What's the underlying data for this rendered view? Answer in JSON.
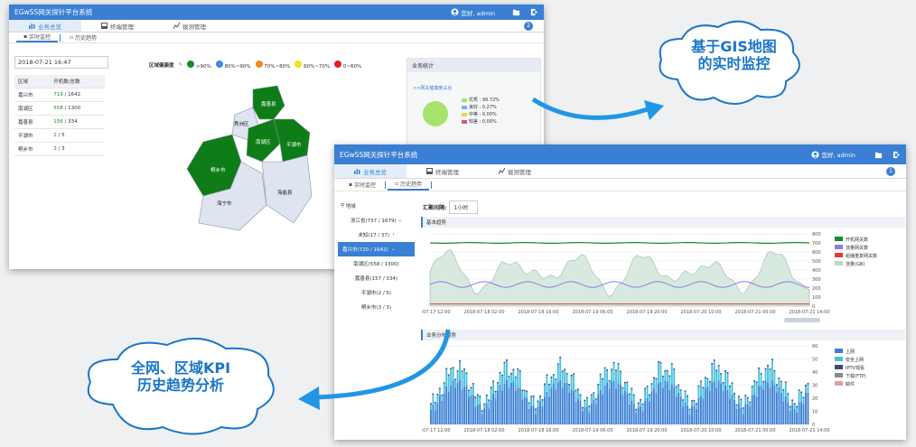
{
  "app_title": "EGwSS网关探针平台系统",
  "user_greeting": "您好, admin",
  "nav_tabs": [
    "业务总览",
    "终端管理",
    "拨测管理"
  ],
  "badge_count": "2",
  "badge_count_b": "1",
  "sub_tabs": [
    "实时监控",
    "历史趋势"
  ],
  "screenA": {
    "datetime": "2018-07-21 16:47",
    "legend_title": "区域健康度",
    "legend": [
      {
        "label": ">90%",
        "color": "#1a8a2a"
      },
      {
        "label": "80%~90%",
        "color": "#3a8ee6"
      },
      {
        "label": "70%~80%",
        "color": "#f08a1c"
      },
      {
        "label": "60%~70%",
        "color": "#f2e21a"
      },
      {
        "label": "0~60%",
        "color": "#e02020"
      }
    ],
    "table_headers": [
      "区域",
      "开机数/总数"
    ],
    "table_rows": [
      {
        "region": "嘉兴市",
        "a": "719",
        "b": "1642"
      },
      {
        "region": "南湖区",
        "a": "558",
        "b": "1300"
      },
      {
        "region": "嘉善县",
        "a": "156",
        "b": "334"
      },
      {
        "region": "平湖市",
        "a": "2",
        "b": "5"
      },
      {
        "region": "桐乡市",
        "a": "3",
        "b": "3"
      }
    ],
    "map_labels": [
      "秀洲区",
      "嘉善县",
      "南湖区",
      "平湖市",
      "桐乡市",
      "海宁市",
      "海盐县"
    ],
    "stats_title": "业务统计",
    "stats_link": ">>网关健康度占比",
    "stats": [
      {
        "label": "优秀 : 99.72%",
        "color": "#a6e36a"
      },
      {
        "label": "良好 : 0.27%",
        "color": "#6cb8f0"
      },
      {
        "label": "中等 : 0.00%",
        "color": "#f2d14a"
      },
      {
        "label": "较差 : 0.00%",
        "color": "#e0527a"
      }
    ]
  },
  "screenB": {
    "tree_root": "地域",
    "tree": [
      "浙江省(737 / 1679)",
      "未知(17 / 37)",
      "嘉兴市(720 / 1642)",
      "南湖区(558 / 1300)",
      "嘉善县(157 / 334)",
      "平湖市(2 / 5)",
      "桐乡市(3 / 3)"
    ],
    "interval_label": "汇聚间隔:",
    "interval_value": "1小时",
    "section1": "基本趋势",
    "section2": "业务分布趋势",
    "xticks": [
      "2018-07-17 12:00",
      "2018-07-18 02:00",
      "2018-07-18 16:00",
      "2018-07-19 06:00",
      "2018-07-19 20:00",
      "2018-07-20 10:00",
      "2018-07-21 00:00",
      "2018-07-21 14:00"
    ],
    "yticks1": [
      "800",
      "700",
      "600",
      "500",
      "400",
      "300",
      "200",
      "100",
      "0"
    ],
    "yticks2": [
      "60",
      "50",
      "40",
      "30",
      "20",
      "10",
      "0"
    ],
    "legend1": [
      {
        "label": "开机网关数",
        "color": "#1a8a2a"
      },
      {
        "label": "流量网关数",
        "color": "#8a7ee0"
      },
      {
        "label": "组播重复网关数",
        "color": "#e03a3a"
      },
      {
        "label": "流量(GB)",
        "color": "#b8d8c8"
      }
    ],
    "legend2": [
      {
        "label": "上网",
        "color": "#3a7fd4"
      },
      {
        "label": "安全上网",
        "color": "#4ac0e0"
      },
      {
        "label": "IPTV观看",
        "color": "#3a4a7a"
      },
      {
        "label": "下载(FTP)",
        "color": "#888888"
      },
      {
        "label": "邮件",
        "color": "#e0a0a0"
      }
    ]
  },
  "callouts": {
    "top": [
      "基于GIS地图",
      "的实时监控"
    ],
    "bottom": [
      "全网、区域KPI",
      "历史趋势分析"
    ]
  }
}
